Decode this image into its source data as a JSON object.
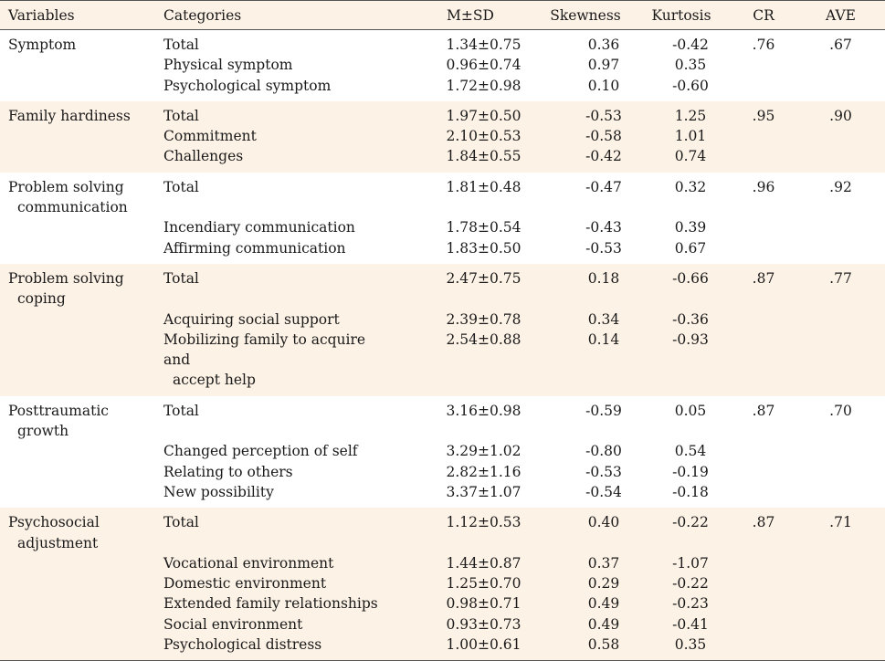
{
  "headers": {
    "variables": "Variables",
    "categories": "Categories",
    "msd": "M±SD",
    "skewness": "Skewness",
    "kurtosis": "Kurtosis",
    "cr": "CR",
    "ave": "AVE"
  },
  "groups": [
    {
      "var1": "Symptom",
      "var2": "",
      "cr": ".76",
      "ave": ".67",
      "rows": [
        {
          "cat": "Total",
          "cat2": "",
          "msd": "1.34±0.75",
          "skew": "0.36",
          "kurt": "-0.42"
        },
        {
          "cat": "Physical symptom",
          "cat2": "",
          "msd": "0.96±0.74",
          "skew": "0.97",
          "kurt": "0.35"
        },
        {
          "cat": "Psychological symptom",
          "cat2": "",
          "msd": "1.72±0.98",
          "skew": "0.10",
          "kurt": "-0.60"
        }
      ]
    },
    {
      "var1": "Family hardiness",
      "var2": "",
      "cr": ".95",
      "ave": ".90",
      "rows": [
        {
          "cat": "Total",
          "cat2": "",
          "msd": "1.97±0.50",
          "skew": "-0.53",
          "kurt": "1.25"
        },
        {
          "cat": "Commitment",
          "cat2": "",
          "msd": "2.10±0.53",
          "skew": "-0.58",
          "kurt": "1.01"
        },
        {
          "cat": "Challenges",
          "cat2": "",
          "msd": "1.84±0.55",
          "skew": "-0.42",
          "kurt": "0.74"
        }
      ]
    },
    {
      "var1": "Problem solving",
      "var2": "communication",
      "cr": ".96",
      "ave": ".92",
      "rows": [
        {
          "cat": "Total",
          "cat2": "",
          "msd": "1.81±0.48",
          "skew": "-0.47",
          "kurt": "0.32"
        },
        {
          "cat": "Incendiary communication",
          "cat2": "",
          "msd": "1.78±0.54",
          "skew": "-0.43",
          "kurt": "0.39"
        },
        {
          "cat": "Affirming communication",
          "cat2": "",
          "msd": "1.83±0.50",
          "skew": "-0.53",
          "kurt": "0.67"
        }
      ]
    },
    {
      "var1": "Problem solving",
      "var2": "coping",
      "cr": ".87",
      "ave": ".77",
      "rows": [
        {
          "cat": "Total",
          "cat2": "",
          "msd": "2.47±0.75",
          "skew": "0.18",
          "kurt": "-0.66"
        },
        {
          "cat": "Acquiring social support",
          "cat2": "",
          "msd": "2.39±0.78",
          "skew": "0.34",
          "kurt": "-0.36"
        },
        {
          "cat": "Mobilizing family to acquire and",
          "cat2": "accept help",
          "msd": "2.54±0.88",
          "skew": "0.14",
          "kurt": "-0.93"
        }
      ]
    },
    {
      "var1": "Posttraumatic",
      "var2": "growth",
      "cr": ".87",
      "ave": ".70",
      "rows": [
        {
          "cat": "Total",
          "cat2": "",
          "msd": "3.16±0.98",
          "skew": "-0.59",
          "kurt": "0.05"
        },
        {
          "cat": "Changed perception of self",
          "cat2": "",
          "msd": "3.29±1.02",
          "skew": "-0.80",
          "kurt": "0.54"
        },
        {
          "cat": "Relating to others",
          "cat2": "",
          "msd": "2.82±1.16",
          "skew": "-0.53",
          "kurt": "-0.19"
        },
        {
          "cat": "New possibility",
          "cat2": "",
          "msd": "3.37±1.07",
          "skew": "-0.54",
          "kurt": "-0.18"
        }
      ]
    },
    {
      "var1": "Psychosocial",
      "var2": "adjustment",
      "cr": ".87",
      "ave": ".71",
      "rows": [
        {
          "cat": "Total",
          "cat2": "",
          "msd": "1.12±0.53",
          "skew": "0.40",
          "kurt": "-0.22"
        },
        {
          "cat": "Vocational environment",
          "cat2": "",
          "msd": "1.44±0.87",
          "skew": "0.37",
          "kurt": "-1.07"
        },
        {
          "cat": "Domestic environment",
          "cat2": "",
          "msd": "1.25±0.70",
          "skew": "0.29",
          "kurt": "-0.22"
        },
        {
          "cat": "Extended family relationships",
          "cat2": "",
          "msd": "0.98±0.71",
          "skew": "0.49",
          "kurt": "-0.23"
        },
        {
          "cat": "Social environment",
          "cat2": "",
          "msd": "0.93±0.73",
          "skew": "0.49",
          "kurt": "-0.41"
        },
        {
          "cat": "Psychological distress",
          "cat2": "",
          "msd": "1.00±0.61",
          "skew": "0.58",
          "kurt": "0.35"
        }
      ]
    }
  ]
}
